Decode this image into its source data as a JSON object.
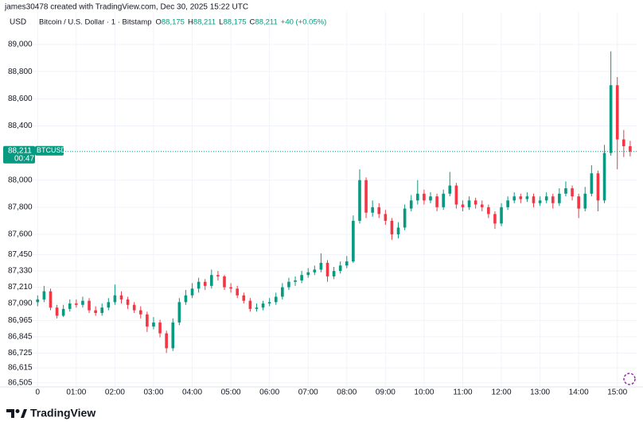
{
  "chart_data": {
    "type": "candlestick",
    "attribution": "james30478 created with TradingView.com, Dec 30, 2025 15:22 UTC",
    "currency": "USD",
    "symbol_title": "Bitcoin / U.S. Dollar · 1 · Bitstamp",
    "ohlc": [
      {
        "key": "O",
        "value": "88,175"
      },
      {
        "key": "H",
        "value": "88,211"
      },
      {
        "key": "L",
        "value": "88,175"
      },
      {
        "key": "C",
        "value": "88,211"
      }
    ],
    "change": "+40 (+0.05%)",
    "last_price": {
      "value": 88211,
      "label": "88,211"
    },
    "ticker": "BTCUSD",
    "countdown": "00:47",
    "brand": "TradingView",
    "up_color": "#089981",
    "down_color": "#f23645",
    "grid": true,
    "xlim": [
      -9,
      930
    ],
    "ylim": [
      86475,
      89094
    ],
    "xticks": [
      {
        "value": 0,
        "label": "0"
      },
      {
        "value": 60,
        "label": "01:00"
      },
      {
        "value": 120,
        "label": "02:00"
      },
      {
        "value": 180,
        "label": "03:00"
      },
      {
        "value": 240,
        "label": "04:00"
      },
      {
        "value": 300,
        "label": "05:00"
      },
      {
        "value": 360,
        "label": "06:00"
      },
      {
        "value": 420,
        "label": "07:00"
      },
      {
        "value": 480,
        "label": "08:00"
      },
      {
        "value": 540,
        "label": "09:00"
      },
      {
        "value": 600,
        "label": "10:00"
      },
      {
        "value": 660,
        "label": "11:00"
      },
      {
        "value": 720,
        "label": "12:00"
      },
      {
        "value": 780,
        "label": "13:00"
      },
      {
        "value": 840,
        "label": "14:00"
      },
      {
        "value": 900,
        "label": "15:00"
      }
    ],
    "yticks": [
      {
        "value": 89000,
        "label": "89,000"
      },
      {
        "value": 88800,
        "label": "88,800"
      },
      {
        "value": 88600,
        "label": "88,600"
      },
      {
        "value": 88400,
        "label": "88,400"
      },
      {
        "value": 88000,
        "label": "88,000"
      },
      {
        "value": 87800,
        "label": "87,800"
      },
      {
        "value": 87600,
        "label": "87,600"
      },
      {
        "value": 87450,
        "label": "87,450"
      },
      {
        "value": 87330,
        "label": "87,330"
      },
      {
        "value": 87210,
        "label": "87,210"
      },
      {
        "value": 87090,
        "label": "87,090"
      },
      {
        "value": 86965,
        "label": "86,965"
      },
      {
        "value": 86845,
        "label": "86,845"
      },
      {
        "value": 86725,
        "label": "86,725"
      },
      {
        "value": 86615,
        "label": "86,615"
      },
      {
        "value": 86505,
        "label": "86,505"
      }
    ],
    "x": [
      0,
      10,
      20,
      30,
      40,
      50,
      60,
      70,
      80,
      90,
      100,
      110,
      120,
      130,
      140,
      150,
      160,
      170,
      180,
      190,
      200,
      210,
      220,
      230,
      240,
      250,
      260,
      270,
      280,
      290,
      300,
      310,
      320,
      330,
      340,
      350,
      360,
      370,
      380,
      390,
      400,
      410,
      420,
      430,
      440,
      450,
      460,
      470,
      480,
      490,
      500,
      510,
      520,
      530,
      540,
      550,
      560,
      570,
      580,
      590,
      600,
      610,
      620,
      630,
      640,
      650,
      660,
      670,
      680,
      690,
      700,
      710,
      720,
      730,
      740,
      750,
      760,
      770,
      780,
      790,
      800,
      810,
      820,
      830,
      840,
      850,
      860,
      870,
      880,
      890,
      900,
      910,
      920
    ],
    "open": [
      87100,
      87120,
      87180,
      87060,
      87000,
      87050,
      87090,
      87080,
      87110,
      87040,
      87020,
      87060,
      87100,
      87150,
      87120,
      87080,
      87040,
      87010,
      86920,
      86950,
      86870,
      86760,
      86950,
      87100,
      87150,
      87200,
      87250,
      87220,
      87300,
      87290,
      87210,
      87200,
      87150,
      87110,
      87050,
      87060,
      87090,
      87100,
      87140,
      87210,
      87250,
      87260,
      87300,
      87320,
      87340,
      87390,
      87290,
      87330,
      87370,
      87400,
      87700,
      88000,
      87760,
      87800,
      87750,
      87700,
      87600,
      87650,
      87790,
      87850,
      87900,
      87850,
      87880,
      87800,
      87900,
      87960,
      87820,
      87800,
      87850,
      87820,
      87800,
      87750,
      87680,
      87800,
      87850,
      87880,
      87860,
      87880,
      87830,
      87850,
      87880,
      87830,
      87900,
      87940,
      87880,
      87790,
      87900,
      88050,
      87850,
      88200,
      88700,
      88300,
      88250
    ],
    "high": [
      87150,
      87220,
      87200,
      87080,
      87080,
      87120,
      87120,
      87140,
      87130,
      87070,
      87090,
      87130,
      87230,
      87180,
      87140,
      87100,
      87070,
      87030,
      86990,
      86970,
      86890,
      86980,
      87130,
      87190,
      87240,
      87280,
      87270,
      87340,
      87330,
      87300,
      87240,
      87220,
      87170,
      87130,
      87090,
      87110,
      87130,
      87170,
      87240,
      87280,
      87290,
      87330,
      87350,
      87370,
      87460,
      87410,
      87360,
      87400,
      87440,
      87740,
      88080,
      88020,
      87850,
      87830,
      87780,
      87720,
      87690,
      87820,
      87890,
      88000,
      87930,
      87910,
      87900,
      87930,
      88060,
      87980,
      87850,
      87880,
      87870,
      87850,
      87820,
      87770,
      87830,
      87880,
      87910,
      87900,
      87910,
      87900,
      87880,
      87910,
      87900,
      87940,
      87990,
      87960,
      87900,
      87950,
      88110,
      88070,
      88260,
      88950,
      88760,
      88370,
      88290
    ],
    "low": [
      87070,
      87100,
      87040,
      86980,
      86990,
      87030,
      87060,
      87060,
      87020,
      87000,
      87000,
      87040,
      87080,
      87090,
      87050,
      87020,
      86980,
      86880,
      86900,
      86840,
      86725,
      86740,
      86930,
      87080,
      87130,
      87170,
      87190,
      87200,
      87260,
      87190,
      87170,
      87130,
      87090,
      87030,
      87030,
      87040,
      87070,
      87080,
      87120,
      87190,
      87220,
      87240,
      87280,
      87300,
      87320,
      87250,
      87270,
      87310,
      87350,
      87390,
      87680,
      87720,
      87730,
      87720,
      87670,
      87560,
      87570,
      87630,
      87770,
      87820,
      87820,
      87830,
      87770,
      87780,
      87880,
      87790,
      87770,
      87780,
      87790,
      87770,
      87720,
      87640,
      87660,
      87780,
      87830,
      87830,
      87840,
      87800,
      87810,
      87830,
      87790,
      87810,
      87880,
      87850,
      87720,
      87770,
      87880,
      87770,
      87830,
      88180,
      88080,
      88170,
      88175
    ],
    "close": [
      87120,
      87180,
      87060,
      87000,
      87050,
      87090,
      87080,
      87110,
      87040,
      87020,
      87060,
      87100,
      87150,
      87120,
      87080,
      87040,
      87010,
      86920,
      86950,
      86870,
      86760,
      86950,
      87100,
      87150,
      87200,
      87250,
      87220,
      87300,
      87290,
      87210,
      87200,
      87150,
      87110,
      87050,
      87060,
      87090,
      87100,
      87140,
      87210,
      87250,
      87260,
      87300,
      87320,
      87340,
      87390,
      87290,
      87330,
      87370,
      87400,
      87700,
      88000,
      87760,
      87800,
      87750,
      87700,
      87600,
      87650,
      87790,
      87850,
      87900,
      87850,
      87880,
      87800,
      87900,
      87960,
      87820,
      87800,
      87850,
      87820,
      87800,
      87750,
      87680,
      87800,
      87850,
      87880,
      87860,
      87880,
      87830,
      87850,
      87880,
      87830,
      87900,
      87940,
      87880,
      87790,
      87900,
      88050,
      87850,
      88200,
      88700,
      88300,
      88250,
      88211
    ]
  }
}
